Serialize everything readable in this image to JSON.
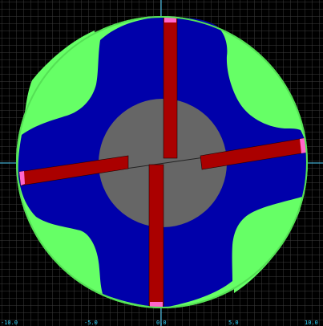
{
  "colors": {
    "background": "#000000",
    "grid": "#3c3c3c",
    "grid_axis": "#4fd3ff",
    "outer_boundary": "#66ff66",
    "fluid_region": "#0000aa",
    "rotor_core": "#666666",
    "blades": "#aa0000",
    "blade_tips": "#ff66cc",
    "tick_text": "#33d6ff"
  },
  "icons": {
    "scene": "rotary-vane-mesh-icon"
  },
  "x_axis": {
    "tick_labels": [
      "-10.0",
      "-5.0",
      "0.0",
      "5.0",
      "10.0"
    ]
  }
}
